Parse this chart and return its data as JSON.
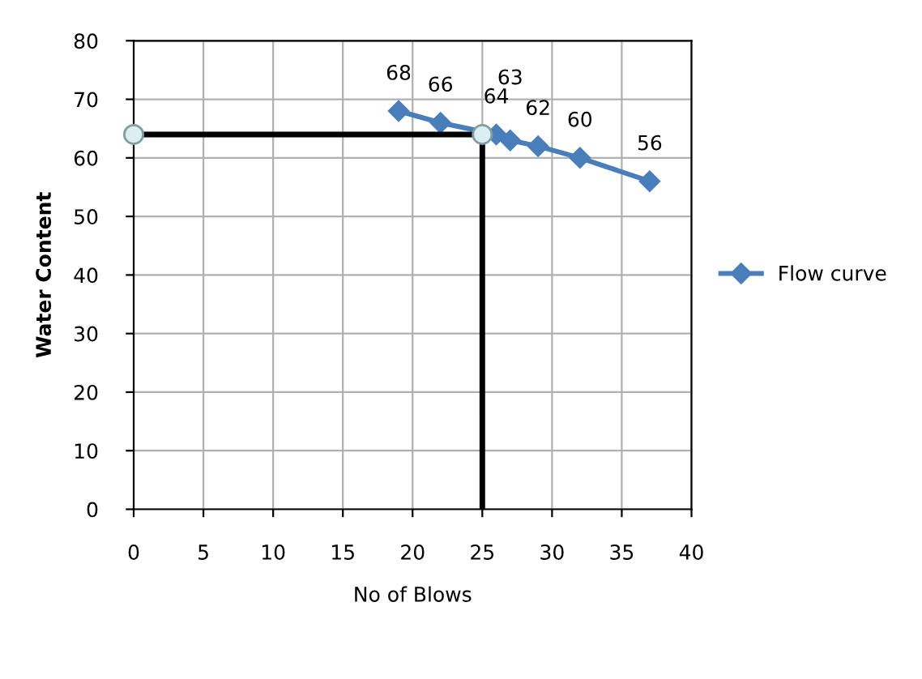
{
  "chart_data": {
    "type": "line",
    "xlabel": "No of Blows",
    "ylabel": "Water Content",
    "xlim": [
      0,
      40
    ],
    "xticks": [
      0,
      5,
      10,
      15,
      20,
      25,
      30,
      35,
      40
    ],
    "ylim": [
      0,
      80
    ],
    "yticks": [
      0,
      10,
      20,
      30,
      40,
      50,
      60,
      70,
      80
    ],
    "grid": true,
    "legend": "right",
    "series": [
      {
        "name": "Flow curve",
        "type": "line",
        "color": "#4a7ebb",
        "marker": "diamond",
        "x": [
          19,
          22,
          26,
          27,
          29,
          32,
          37
        ],
        "values": [
          68,
          66,
          64,
          63,
          62,
          60,
          56
        ],
        "value_labels": [
          "68",
          "66",
          "64",
          "63",
          "62",
          "60",
          "56"
        ]
      },
      {
        "type": "line",
        "color": "#000000",
        "marker": "none",
        "x": [
          0,
          25,
          25
        ],
        "values": [
          64,
          64,
          0
        ]
      },
      {
        "type": "scatter",
        "color": "#dbeef0",
        "marker": "circle",
        "x": [
          0,
          25
        ],
        "values": [
          64,
          64
        ]
      }
    ]
  }
}
